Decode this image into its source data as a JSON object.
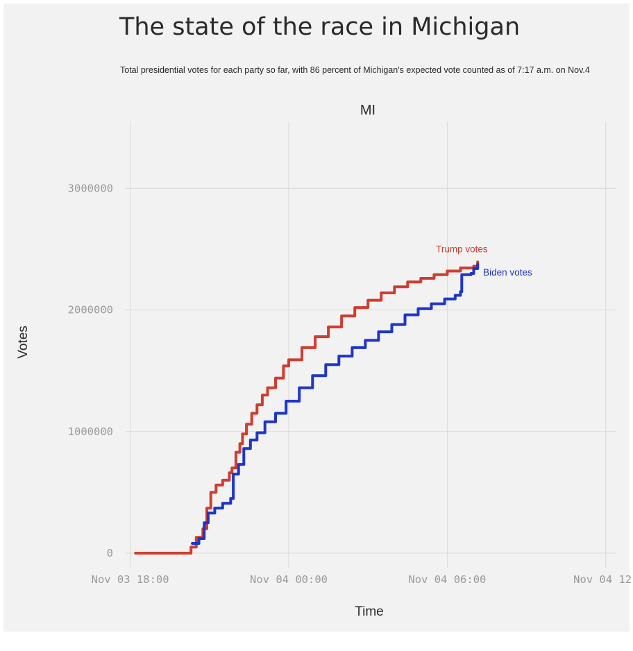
{
  "title": "The state of the race in Michigan",
  "subtitle": "Total presidential votes for each party so far, with 86 percent of Michigan's expected vote counted as of 7:17 a.m. on Nov.4",
  "colors": {
    "background": "#f2f2f2",
    "grid": "#d9d9d9",
    "trump": "#cf3d30",
    "biden": "#1f35c9"
  },
  "chart_data": {
    "type": "line",
    "facet": "MI",
    "xlabel": "Time",
    "ylabel": "Votes",
    "x_unit": "hours",
    "xlim": [
      -6.2,
      12.4
    ],
    "ylim": [
      -120000,
      3550000
    ],
    "y_ticks": [
      0,
      1000000,
      2000000,
      3000000
    ],
    "y_tick_labels": [
      "0",
      "1000000",
      "2000000",
      "3000000"
    ],
    "x_ticks": [
      -6,
      0,
      6,
      12
    ],
    "x_tick_labels": [
      "Nov 03 18:00",
      "Nov 04 00:00",
      "Nov 04 06:00",
      "Nov 04 12:"
    ],
    "grid": true,
    "legend": "direct labels at line ends",
    "series": [
      {
        "name": "Trump votes",
        "color": "#cf3d30",
        "points": [
          [
            -5.8,
            0
          ],
          [
            -3.9,
            0
          ],
          [
            -3.7,
            50000
          ],
          [
            -3.5,
            130000
          ],
          [
            -3.25,
            200000
          ],
          [
            -3.1,
            370000
          ],
          [
            -2.95,
            500000
          ],
          [
            -2.75,
            560000
          ],
          [
            -2.5,
            600000
          ],
          [
            -2.25,
            660000
          ],
          [
            -2.15,
            700000
          ],
          [
            -2.0,
            830000
          ],
          [
            -1.85,
            900000
          ],
          [
            -1.75,
            980000
          ],
          [
            -1.6,
            1060000
          ],
          [
            -1.4,
            1150000
          ],
          [
            -1.2,
            1220000
          ],
          [
            -1.0,
            1300000
          ],
          [
            -0.8,
            1360000
          ],
          [
            -0.5,
            1440000
          ],
          [
            -0.2,
            1540000
          ],
          [
            0.0,
            1590000
          ],
          [
            0.5,
            1690000
          ],
          [
            1.0,
            1780000
          ],
          [
            1.5,
            1860000
          ],
          [
            2.0,
            1950000
          ],
          [
            2.5,
            2020000
          ],
          [
            3.0,
            2080000
          ],
          [
            3.5,
            2140000
          ],
          [
            4.0,
            2190000
          ],
          [
            4.5,
            2230000
          ],
          [
            5.0,
            2260000
          ],
          [
            5.5,
            2290000
          ],
          [
            6.0,
            2320000
          ],
          [
            6.5,
            2345000
          ],
          [
            7.0,
            2360000
          ],
          [
            7.15,
            2395000
          ]
        ]
      },
      {
        "name": "Biden votes",
        "color": "#1f35c9",
        "points": [
          [
            -3.65,
            80000
          ],
          [
            -3.4,
            120000
          ],
          [
            -3.2,
            250000
          ],
          [
            -3.05,
            330000
          ],
          [
            -2.8,
            370000
          ],
          [
            -2.5,
            410000
          ],
          [
            -2.2,
            450000
          ],
          [
            -2.1,
            650000
          ],
          [
            -1.9,
            730000
          ],
          [
            -1.7,
            860000
          ],
          [
            -1.45,
            930000
          ],
          [
            -1.2,
            990000
          ],
          [
            -0.9,
            1080000
          ],
          [
            -0.5,
            1150000
          ],
          [
            -0.1,
            1250000
          ],
          [
            0.4,
            1360000
          ],
          [
            0.9,
            1460000
          ],
          [
            1.4,
            1550000
          ],
          [
            1.9,
            1620000
          ],
          [
            2.4,
            1690000
          ],
          [
            2.9,
            1750000
          ],
          [
            3.4,
            1820000
          ],
          [
            3.9,
            1880000
          ],
          [
            4.4,
            1960000
          ],
          [
            4.9,
            2010000
          ],
          [
            5.4,
            2050000
          ],
          [
            5.9,
            2090000
          ],
          [
            6.3,
            2120000
          ],
          [
            6.5,
            2150000
          ],
          [
            6.55,
            2290000
          ],
          [
            6.9,
            2300000
          ],
          [
            7.0,
            2340000
          ],
          [
            7.15,
            2375000
          ]
        ]
      }
    ]
  }
}
